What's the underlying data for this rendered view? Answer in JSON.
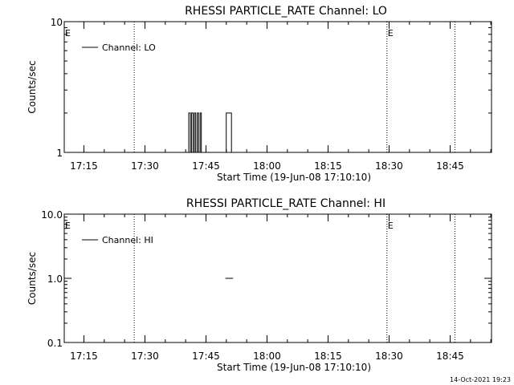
{
  "footer": {
    "timestamp": "14-Oct-2021 19:23"
  },
  "colors": {
    "background": "#ffffff",
    "ink": "#000000"
  },
  "chart_data": [
    {
      "type": "line",
      "title": "RHESSI PARTICLE_RATE Channel: LO",
      "xlabel": "Start Time (19-Jun-08 17:10:10)",
      "ylabel": "Counts/sec",
      "yscale": "log",
      "ylim": [
        1,
        10
      ],
      "xlim_minutes": [
        0,
        105
      ],
      "ytick_labels": [
        {
          "value": 1,
          "label": "1"
        },
        {
          "value": 10,
          "label": "10"
        }
      ],
      "xtick_labels": [
        "17:15",
        "17:30",
        "17:45",
        "18:00",
        "18:15",
        "18:30",
        "18:45"
      ],
      "xtick_minutes": [
        4.83,
        19.83,
        34.83,
        49.83,
        64.83,
        79.83,
        94.83
      ],
      "legend": {
        "label": "Channel: LO",
        "position": "top-left"
      },
      "event_markers": [
        {
          "time": "17:27",
          "minute": 17.2,
          "label": ""
        },
        {
          "time": "18:29",
          "minute": 79.3,
          "label": "E"
        },
        {
          "time": "18:46",
          "minute": 96.0,
          "label": ""
        }
      ],
      "edge_markers": [
        {
          "label": "E",
          "side": "left"
        }
      ],
      "series": [
        {
          "x_minutes": [
            30.6,
            30.6,
            31.0,
            31.0,
            31.3,
            31.3,
            31.7,
            31.7,
            32.0,
            32.0,
            32.3,
            32.3,
            32.7,
            32.7,
            33.0,
            33.0,
            33.4,
            33.4,
            33.7,
            33.7,
            39.8,
            39.8,
            41.1,
            41.1
          ],
          "y": [
            1,
            2,
            2,
            1,
            1,
            2,
            2,
            1,
            1,
            2,
            2,
            1,
            1,
            2,
            2,
            1,
            1,
            2,
            2,
            1,
            1,
            2,
            2,
            1
          ]
        }
      ]
    },
    {
      "type": "line",
      "title": "RHESSI PARTICLE_RATE Channel: HI",
      "xlabel": "Start Time (19-Jun-08 17:10:10)",
      "ylabel": "Counts/sec",
      "yscale": "log",
      "ylim": [
        0.1,
        10
      ],
      "xlim_minutes": [
        0,
        105
      ],
      "ytick_labels": [
        {
          "value": 0.1,
          "label": "0.1"
        },
        {
          "value": 1,
          "label": "1.0"
        },
        {
          "value": 10,
          "label": "10.0"
        }
      ],
      "xtick_labels": [
        "17:15",
        "17:30",
        "17:45",
        "18:00",
        "18:15",
        "18:30",
        "18:45"
      ],
      "xtick_minutes": [
        4.83,
        19.83,
        34.83,
        49.83,
        64.83,
        79.83,
        94.83
      ],
      "legend": {
        "label": "Channel: HI",
        "position": "top-left"
      },
      "event_markers": [
        {
          "time": "17:27",
          "minute": 17.2,
          "label": ""
        },
        {
          "time": "18:29",
          "minute": 79.3,
          "label": "E"
        },
        {
          "time": "18:46",
          "minute": 96.0,
          "label": ""
        }
      ],
      "edge_markers": [
        {
          "label": "E",
          "side": "left"
        }
      ],
      "series": [
        {
          "x_minutes": [
            39.6,
            41.5
          ],
          "y": [
            1,
            1
          ]
        }
      ]
    }
  ]
}
